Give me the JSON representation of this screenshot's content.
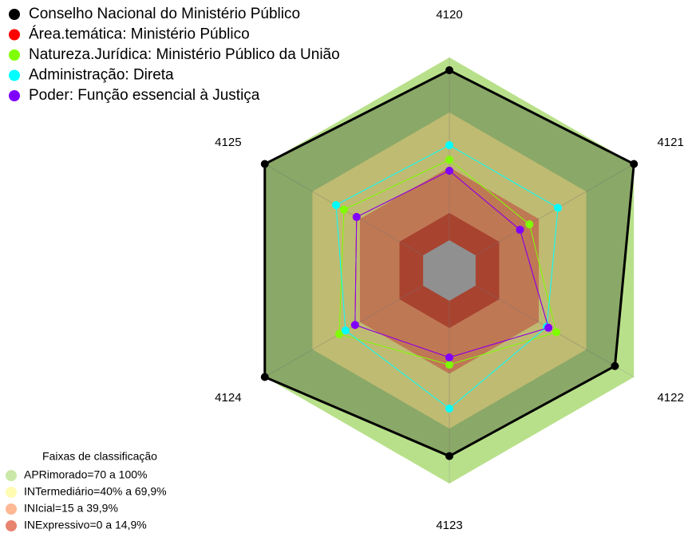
{
  "chart_data": {
    "type": "radar",
    "categories": [
      "4120",
      "4121",
      "4122",
      "4123",
      "4124",
      "4125"
    ],
    "rlim": [
      0,
      100
    ],
    "series": [
      {
        "name": "Conselho Nacional do Ministério Público",
        "color": "#000000",
        "values": [
          93,
          100,
          88,
          85,
          100,
          100
        ]
      },
      {
        "name": "Área.temática: Ministério Público",
        "color": "#ff0000",
        "values": [
          38,
          28,
          46,
          31,
          43,
          42
        ]
      },
      {
        "name": "Natureza.Jurídica: Ministério Público da União",
        "color": "#7fff00",
        "values": [
          44,
          34,
          51,
          35,
          53,
          50
        ]
      },
      {
        "name": "Administração: Direta",
        "color": "#00ffff",
        "values": [
          52,
          52,
          45,
          59,
          49,
          55
        ]
      },
      {
        "name": "Poder: Função essencial à Justiça",
        "color": "#8000ff",
        "values": [
          38,
          28,
          46,
          31,
          43,
          42
        ]
      }
    ],
    "bands_title": "Faixas de classificação",
    "bands": [
      {
        "label": "APRimorado=70 a 100%",
        "color": "#b8e08a",
        "range": [
          70,
          100
        ]
      },
      {
        "label": "INTermediário=40% a 69,9%",
        "color": "#fffa99",
        "range": [
          40,
          69.9
        ]
      },
      {
        "label": "INIcial=15 a 39,9%",
        "color": "#ffa070",
        "range": [
          15,
          39.9
        ]
      },
      {
        "label": "INExpressivo=0 a 14,9%",
        "color": "#e05a40",
        "range": [
          0,
          14.9
        ]
      }
    ]
  }
}
